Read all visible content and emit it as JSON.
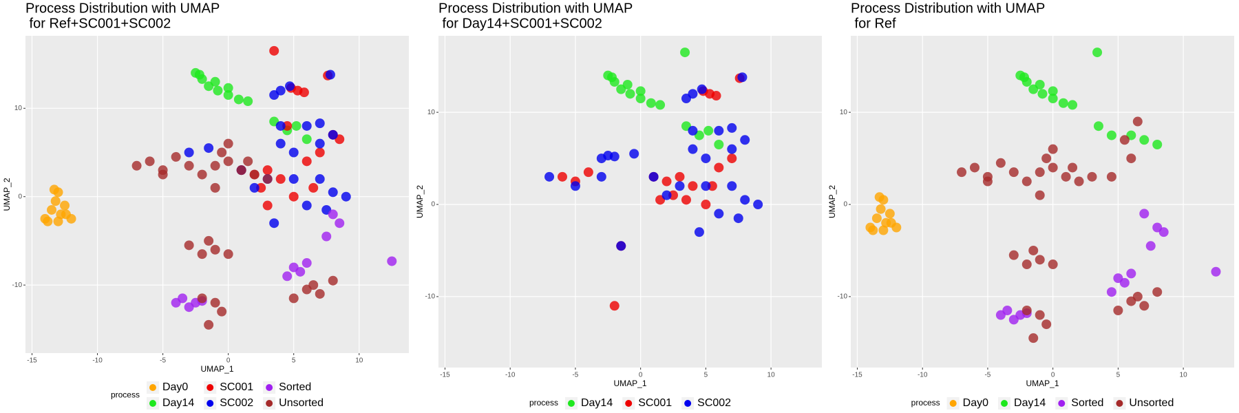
{
  "chart_data": [
    {
      "type": "scatter",
      "title": [
        "Process Distribution with UMAP",
        " for Ref+SC001+SC002"
      ],
      "x_label": "UMAP_1",
      "y_label": "UMAP_2",
      "legend_title": "process",
      "legend_position": "bottom",
      "grid": true,
      "xlim": [
        -15.5,
        13.8
      ],
      "ylim": [
        -17.7,
        18.2
      ],
      "xticks": [
        -15,
        -10,
        -5,
        0,
        5,
        10
      ],
      "yticks": [
        -10,
        0,
        10
      ],
      "series": [
        {
          "name": "Day0",
          "color": "#ffa500",
          "x": [
            -13,
            -13.2,
            -12.5,
            -13.5,
            -12.8,
            -14,
            -13,
            -12,
            -13.3,
            -12.4,
            -13.8
          ],
          "y": [
            0.5,
            -0.5,
            -1,
            -1.5,
            -2,
            -2.5,
            -2.8,
            -2.5,
            0.8,
            -2,
            -2.8
          ]
        },
        {
          "name": "Day14",
          "color": "#1ee81e",
          "x": [
            -2.5,
            -2,
            -1.5,
            -0.8,
            0,
            0.8,
            1.5,
            -1,
            0,
            -2.2,
            3.5,
            4.5,
            6,
            5.2
          ],
          "y": [
            14,
            13.3,
            12.5,
            12,
            11.5,
            11,
            10.8,
            13,
            12.3,
            13.8,
            8.5,
            7.5,
            6.5,
            8
          ]
        },
        {
          "name": "SC001",
          "color": "#ee0000",
          "x": [
            5.3,
            5.8,
            4.8,
            7.6,
            3.5,
            3,
            4,
            2.5,
            5,
            6,
            1,
            2,
            7,
            8,
            4.5,
            6.5,
            8.5,
            3
          ],
          "y": [
            12,
            11.8,
            12.3,
            13.7,
            16.5,
            3,
            2,
            1,
            0,
            4,
            3,
            2.5,
            5,
            7,
            8,
            1,
            6.5,
            -1
          ]
        },
        {
          "name": "SC002",
          "color": "#0000ee",
          "x": [
            4,
            4.7,
            3.5,
            7.8,
            4,
            6,
            7,
            4,
            5,
            7,
            3,
            5,
            7,
            8,
            9,
            6,
            7.5,
            2,
            1,
            -3,
            -1.5,
            3.5,
            8
          ],
          "y": [
            12,
            12.5,
            11.5,
            13.8,
            8,
            8,
            8.3,
            6,
            5,
            6,
            2,
            2,
            2,
            0.5,
            0,
            -1,
            -1.5,
            1,
            3,
            5,
            5.5,
            -3,
            7
          ]
        },
        {
          "name": "Sorted",
          "color": "#a020f0",
          "x": [
            -2.5,
            -3.5,
            -3,
            -4,
            -2,
            5,
            6,
            4.5,
            5.5,
            8,
            8.5,
            7.5,
            12.5
          ],
          "y": [
            -12,
            -11.5,
            -12.5,
            -12,
            -11.8,
            -8,
            -7.5,
            -9,
            -8.5,
            -2,
            -3,
            -4.5,
            -7.3
          ]
        },
        {
          "name": "Unsorted",
          "color": "#a52a2a",
          "x": [
            -7,
            -6,
            -5,
            -4,
            -3,
            -2,
            -1,
            0,
            0,
            1,
            2,
            3,
            -1,
            -0.5,
            -3,
            -2,
            -1,
            0,
            -1.5,
            -1,
            -1.5,
            -0.5,
            -2,
            6,
            7,
            5,
            6.5,
            8,
            -5,
            1.5
          ],
          "y": [
            3.5,
            4,
            3,
            4.5,
            3.5,
            2.5,
            3.5,
            6,
            4,
            3,
            2.5,
            2,
            1,
            5,
            -5.5,
            -6.5,
            -6,
            -6.5,
            -5,
            -12,
            -14.5,
            -13,
            -11.5,
            -10.5,
            -11,
            -11.5,
            -10,
            -9.5,
            2.5,
            4
          ]
        }
      ]
    },
    {
      "type": "scatter",
      "title": [
        "Process Distribution with UMAP",
        " for Day14+SC001+SC002"
      ],
      "x_label": "UMAP_1",
      "y_label": "UMAP_2",
      "legend_title": "process",
      "legend_position": "bottom",
      "grid": true,
      "xlim": [
        -15.5,
        13.9
      ],
      "ylim": [
        -17.7,
        18.3
      ],
      "xticks": [
        -15,
        -10,
        -5,
        0,
        5,
        10
      ],
      "yticks": [
        -10,
        0,
        10
      ],
      "series": [
        {
          "name": "Day14",
          "color": "#1ee81e",
          "x": [
            -2.5,
            -2,
            -1.5,
            -0.8,
            0,
            0.8,
            1.5,
            -1,
            0,
            -2.2,
            3.5,
            4.5,
            6,
            5.2,
            3.4
          ],
          "y": [
            14,
            13.3,
            12.5,
            12,
            11.5,
            11,
            10.8,
            13,
            12.3,
            13.8,
            8.5,
            7.5,
            6.5,
            8,
            16.5
          ]
        },
        {
          "name": "SC001",
          "color": "#ee0000",
          "x": [
            5.3,
            5.8,
            4.8,
            7.6,
            3,
            4,
            2.5,
            5,
            6,
            1,
            2,
            7,
            1.5,
            3.5,
            5.5,
            -5,
            -6,
            -4,
            -1.5,
            -2
          ],
          "y": [
            12,
            11.8,
            12.3,
            13.7,
            3,
            2,
            1,
            0,
            4,
            3,
            2.5,
            5,
            0.5,
            0.5,
            2,
            2.5,
            3,
            3.5,
            -4.5,
            -11
          ]
        },
        {
          "name": "SC002",
          "color": "#0000ee",
          "x": [
            4,
            4.7,
            3.5,
            7.8,
            4,
            6,
            7,
            4,
            5,
            7,
            3,
            5,
            7,
            8,
            9,
            6,
            7.5,
            2,
            1,
            -3,
            -2,
            -2.5,
            -7,
            -5,
            -3,
            -0.5,
            -1.5,
            4.5,
            8
          ],
          "y": [
            12,
            12.5,
            11.5,
            13.8,
            8,
            8,
            8.3,
            6,
            5,
            6,
            2,
            2,
            2,
            0.5,
            0,
            -1,
            -1.5,
            1,
            3,
            5,
            5.2,
            5.3,
            3,
            2,
            3,
            5.5,
            -4.5,
            -3,
            7
          ]
        }
      ]
    },
    {
      "type": "scatter",
      "title": [
        "Process Distribution with UMAP",
        " for Ref"
      ],
      "x_label": "UMAP_1",
      "y_label": "UMAP_2",
      "legend_title": "process",
      "legend_position": "bottom",
      "grid": true,
      "xlim": [
        -15.5,
        13.9
      ],
      "ylim": [
        -17.7,
        18.3
      ],
      "xticks": [
        -15,
        -10,
        -5,
        0,
        5,
        10
      ],
      "yticks": [
        -10,
        0,
        10
      ],
      "series": [
        {
          "name": "Day0",
          "color": "#ffa500",
          "x": [
            -13,
            -13.2,
            -12.5,
            -13.5,
            -12.8,
            -14,
            -13,
            -12,
            -13.3,
            -12.4,
            -13.8
          ],
          "y": [
            0.5,
            -0.5,
            -1,
            -1.5,
            -2,
            -2.5,
            -2.8,
            -2.5,
            0.8,
            -2,
            -2.8
          ]
        },
        {
          "name": "Day14",
          "color": "#1ee81e",
          "x": [
            -2.5,
            -2,
            -1.5,
            -0.8,
            0,
            0.8,
            1.5,
            -1,
            0,
            -2.2,
            3.5,
            4.5,
            6,
            7,
            8,
            3.4
          ],
          "y": [
            14,
            13.3,
            12.5,
            12,
            11.5,
            11,
            10.8,
            13,
            12.3,
            13.8,
            8.5,
            7.5,
            7.5,
            7,
            6.5,
            16.5
          ]
        },
        {
          "name": "Sorted",
          "color": "#a020f0",
          "x": [
            -2.5,
            -3.5,
            -3,
            -4,
            -2,
            5,
            6,
            4.5,
            5.5,
            8,
            8.5,
            7.5,
            7,
            12.5
          ],
          "y": [
            -12,
            -11.5,
            -12.5,
            -12,
            -11.8,
            -8,
            -7.5,
            -9.5,
            -8.5,
            -2.5,
            -3,
            -4.5,
            -1,
            -7.3
          ]
        },
        {
          "name": "Unsorted",
          "color": "#a52a2a",
          "x": [
            -7,
            -6,
            -5,
            -4,
            -3,
            -2,
            -1,
            0,
            0,
            1,
            2,
            3,
            4.5,
            -1,
            -0.5,
            -3,
            -2,
            -1,
            0,
            -1.5,
            -1,
            -1.5,
            -0.5,
            -2,
            6,
            7,
            5,
            6.5,
            8,
            -5,
            1.5,
            6.5,
            5.5,
            6
          ],
          "y": [
            3.5,
            4,
            3,
            4.5,
            3.5,
            2.5,
            3.5,
            6,
            4,
            3,
            2.5,
            3,
            3,
            1,
            5,
            -5.5,
            -6.5,
            -6,
            -6.5,
            -5,
            -12,
            -14.5,
            -13,
            -11.5,
            -10.5,
            -11,
            -11.5,
            -10,
            -9.5,
            2.5,
            4,
            9,
            7,
            5
          ]
        }
      ]
    }
  ]
}
